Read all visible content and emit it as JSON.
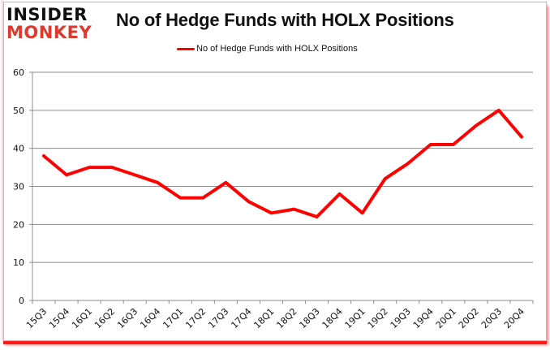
{
  "logo": {
    "line1": "INSIDER",
    "line2": "MONKEY"
  },
  "title": "No of Hedge Funds with HOLX Positions",
  "legend": {
    "label": "No of Hedge Funds with HOLX Positions",
    "color": "#ff0000"
  },
  "chart_data": {
    "type": "line",
    "title": "No of Hedge Funds with HOLX Positions",
    "xlabel": "",
    "ylabel": "",
    "categories": [
      "15Q3",
      "15Q4",
      "16Q1",
      "16Q2",
      "16Q3",
      "16Q4",
      "17Q1",
      "17Q2",
      "17Q3",
      "17Q4",
      "18Q1",
      "18Q2",
      "18Q3",
      "18Q4",
      "19Q1",
      "19Q2",
      "19Q3",
      "19Q4",
      "20Q1",
      "20Q2",
      "20Q3",
      "20Q4"
    ],
    "series": [
      {
        "name": "No of Hedge Funds with HOLX Positions",
        "color": "#ff0000",
        "values": [
          38,
          33,
          35,
          35,
          33,
          31,
          27,
          27,
          31,
          26,
          23,
          24,
          22,
          28,
          23,
          32,
          36,
          41,
          41,
          46,
          50,
          43
        ]
      }
    ],
    "ylim": [
      0,
      60
    ],
    "yticks": [
      0,
      10,
      20,
      30,
      40,
      50,
      60
    ],
    "grid": true,
    "legend_position": "top"
  }
}
